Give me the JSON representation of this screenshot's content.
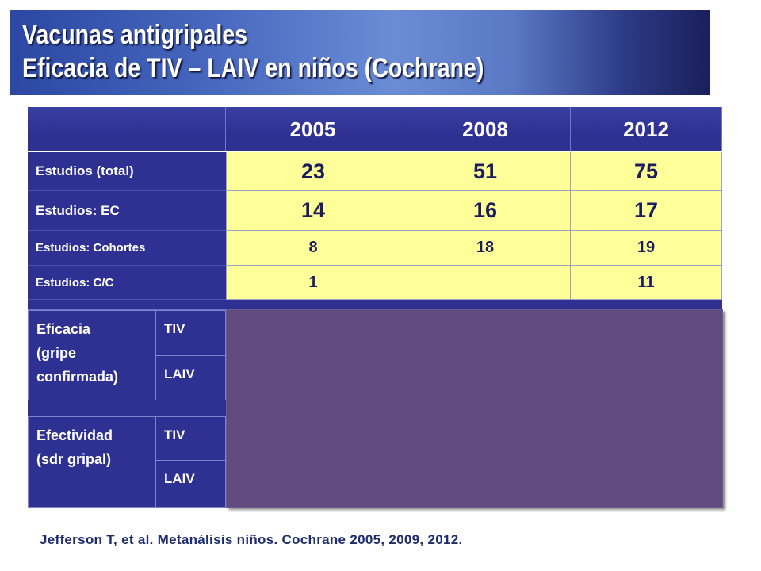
{
  "slide": {
    "title": "Vacunas antigripales",
    "subtitle": "Eficacia de TIV – LAIV en niños (Cochrane)",
    "citation": "Jefferson T, et al. Metanálisis niños. Cochrane 2005, 2009, 2012."
  },
  "table": {
    "columns": [
      "2005",
      "2008",
      "2012"
    ],
    "rows": [
      {
        "label": "Estudios (total)",
        "values": [
          "23",
          "51",
          "75"
        ]
      },
      {
        "label": "Estudios: EC",
        "values": [
          "14",
          "16",
          "17"
        ]
      },
      {
        "label": "Estudios: Cohortes",
        "values": [
          "8",
          "18",
          "19"
        ]
      },
      {
        "label": "Estudios: C/C",
        "values": [
          "1",
          "",
          "11"
        ]
      }
    ],
    "groups": [
      {
        "label_lines": [
          "Eficacia",
          "(gripe",
          "confirmada)"
        ],
        "sublabels": [
          "TIV",
          "LAIV"
        ]
      },
      {
        "label_lines": [
          "Efectividad",
          "(sdr gripal)"
        ],
        "sublabels": [
          "TIV",
          "LAIV"
        ]
      }
    ]
  },
  "colors": {
    "header_bg": "#2e3192",
    "label_bg": "#2e3192",
    "data_bg": "#ffff99",
    "number_text": "#1b1d5e",
    "overlay_bg": "#5f4b7e",
    "citation_text": "#1f2d6e",
    "title_text": "#ffffff"
  }
}
